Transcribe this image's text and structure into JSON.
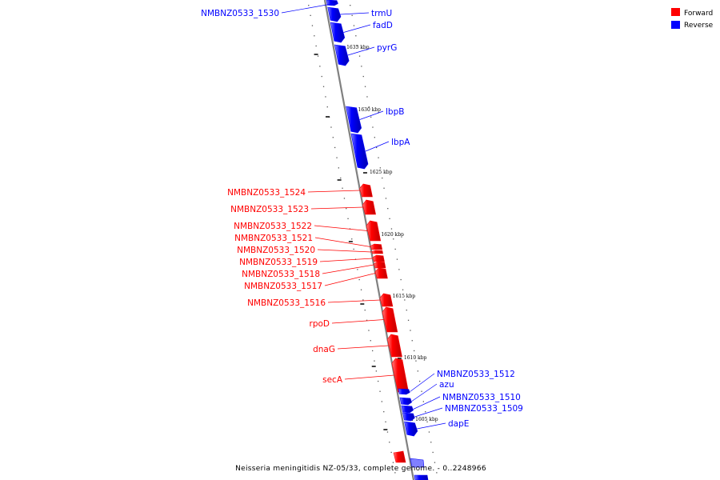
{
  "caption": "Neisseria meningitidis NZ-05/33, complete genome. - 0..2248966",
  "legend": [
    {
      "label": "Forward",
      "color": "#ff0000"
    },
    {
      "label": "Reverse",
      "color": "#0000ff"
    }
  ],
  "colors": {
    "forward": "#ff0000",
    "reverse": "#0000ff",
    "backbone": "#808080"
  },
  "ticks": [
    "1635 kbp",
    "1630 kbp",
    "1625 kbp",
    "1620 kbp",
    "1615 kbp",
    "1610 kbp",
    "1605 kbp"
  ],
  "genes": [
    {
      "label": "NMBNZ0533_1530",
      "strand": "reverse"
    },
    {
      "label": "trmU",
      "strand": "reverse"
    },
    {
      "label": "fadD",
      "strand": "reverse"
    },
    {
      "label": "pyrG",
      "strand": "reverse"
    },
    {
      "label": "lbpB",
      "strand": "reverse"
    },
    {
      "label": "lbpA",
      "strand": "reverse"
    },
    {
      "label": "NMBNZ0533_1524",
      "strand": "forward"
    },
    {
      "label": "NMBNZ0533_1523",
      "strand": "forward"
    },
    {
      "label": "NMBNZ0533_1522",
      "strand": "forward"
    },
    {
      "label": "NMBNZ0533_1521",
      "strand": "forward"
    },
    {
      "label": "NMBNZ0533_1520",
      "strand": "forward"
    },
    {
      "label": "NMBNZ0533_1519",
      "strand": "forward"
    },
    {
      "label": "NMBNZ0533_1518",
      "strand": "forward"
    },
    {
      "label": "NMBNZ0533_1517",
      "strand": "forward"
    },
    {
      "label": "NMBNZ0533_1516",
      "strand": "forward"
    },
    {
      "label": "rpoD",
      "strand": "forward"
    },
    {
      "label": "dnaG",
      "strand": "forward"
    },
    {
      "label": "secA",
      "strand": "forward"
    },
    {
      "label": "NMBNZ0533_1512",
      "strand": "reverse"
    },
    {
      "label": "azu",
      "strand": "reverse"
    },
    {
      "label": "NMBNZ0533_1510",
      "strand": "reverse"
    },
    {
      "label": "NMBNZ0533_1509",
      "strand": "reverse"
    },
    {
      "label": "dapE",
      "strand": "reverse"
    }
  ]
}
